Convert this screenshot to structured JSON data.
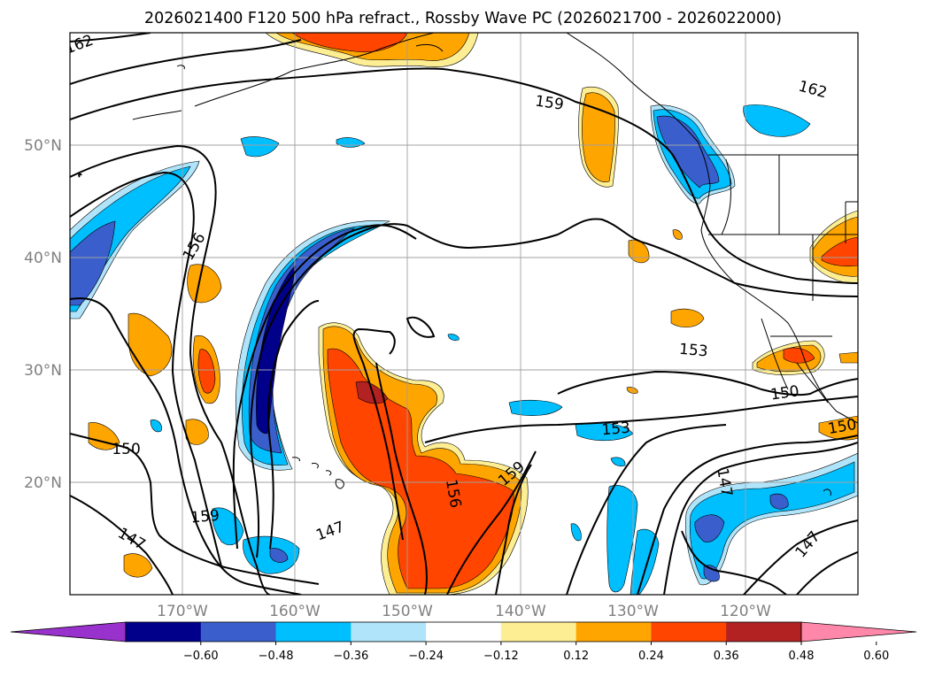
{
  "title": "2026021400 F120 500 hPa refract., Rossby Wave PC (2026021700 - 2026022000)",
  "map": {
    "lon_range": [
      -180,
      -110
    ],
    "lat_range": [
      10,
      60
    ],
    "lat_labels": [
      {
        "lat": 50,
        "text": "50°N"
      },
      {
        "lat": 40,
        "text": "40°N"
      },
      {
        "lat": 30,
        "text": "30°N"
      },
      {
        "lat": 20,
        "text": "20°N"
      }
    ],
    "lon_labels": [
      {
        "lon": -170,
        "text": "170°W"
      },
      {
        "lon": -160,
        "text": "160°W"
      },
      {
        "lon": -150,
        "text": "150°W"
      },
      {
        "lon": -140,
        "text": "140°W"
      },
      {
        "lon": -130,
        "text": "130°W"
      },
      {
        "lon": -120,
        "text": "120°W"
      }
    ],
    "contour_labels": [
      {
        "text": "162",
        "lon": -179.2,
        "lat": 59.0,
        "rot": -20
      },
      {
        "text": "162",
        "lon": -114.0,
        "lat": 55.0,
        "rot": 15
      },
      {
        "text": "159",
        "lon": -137.4,
        "lat": 53.8,
        "rot": 8
      },
      {
        "text": "156",
        "lon": -169.0,
        "lat": 41.0,
        "rot": -60
      },
      {
        "text": "153",
        "lon": -124.6,
        "lat": 31.8,
        "rot": 5
      },
      {
        "text": "150",
        "lon": -116.5,
        "lat": 28.0,
        "rot": -8
      },
      {
        "text": "150",
        "lon": -111.4,
        "lat": 25.0,
        "rot": -10
      },
      {
        "text": "153",
        "lon": -131.5,
        "lat": 24.8,
        "rot": -5
      },
      {
        "text": "150",
        "lon": -175.0,
        "lat": 23.0,
        "rot": 0
      },
      {
        "text": "159",
        "lon": -140.8,
        "lat": 20.8,
        "rot": -40
      },
      {
        "text": "156",
        "lon": -145.9,
        "lat": 19.0,
        "rot": 80
      },
      {
        "text": "147",
        "lon": -121.8,
        "lat": 20.0,
        "rot": 80
      },
      {
        "text": "159",
        "lon": -168.0,
        "lat": 17.0,
        "rot": -5
      },
      {
        "text": "147",
        "lon": -156.9,
        "lat": 15.7,
        "rot": -20
      },
      {
        "text": "147",
        "lon": -174.5,
        "lat": 15.0,
        "rot": 30
      },
      {
        "text": "147",
        "lon": -114.5,
        "lat": 14.5,
        "rot": -50
      }
    ]
  },
  "colorbar": {
    "colors": [
      "#9932cc",
      "#00008b",
      "#3a5fcd",
      "#00bfff",
      "#afe4fa",
      "#ffffff",
      "#fdee94",
      "#ffa500",
      "#ff4500",
      "#b22222",
      "#ff88aa"
    ],
    "ticks": [
      "−0.60",
      "−0.48",
      "−0.36",
      "−0.24",
      "−0.12",
      "0.12",
      "0.24",
      "0.36",
      "0.48",
      "0.60"
    ]
  }
}
